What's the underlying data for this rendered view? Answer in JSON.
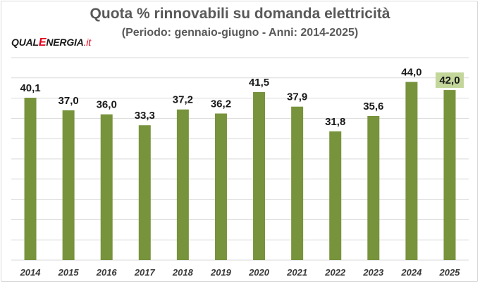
{
  "chart_data": {
    "type": "bar",
    "title": "Quota % rinnovabili su domanda elettricità",
    "subtitle": "(Periodo: gennaio-giugno - Anni: 2014-2025)",
    "categories": [
      "2014",
      "2015",
      "2016",
      "2017",
      "2018",
      "2019",
      "2020",
      "2021",
      "2022",
      "2023",
      "2024",
      "2025"
    ],
    "values": [
      40.1,
      37.0,
      36.0,
      33.3,
      37.2,
      36.2,
      41.5,
      37.9,
      31.8,
      35.6,
      44.0,
      42.0
    ],
    "value_labels": [
      "40,1",
      "37,0",
      "36,0",
      "33,3",
      "37,2",
      "36,2",
      "41,5",
      "37,9",
      "31,8",
      "35,6",
      "44,0",
      "42,0"
    ],
    "highlighted_label_index": 11,
    "ylim": [
      0,
      50
    ],
    "grid": true,
    "bar_color": "#77933c",
    "highlight_label_bg": "#c4d79b",
    "grid_color": "#d9d9d9"
  },
  "logo": {
    "part1": "QUAL",
    "part2": "E",
    "part3": "NERGIA",
    "part4": ".it",
    "color_dark": "#1a1a1a",
    "color_red": "#e3001b"
  }
}
